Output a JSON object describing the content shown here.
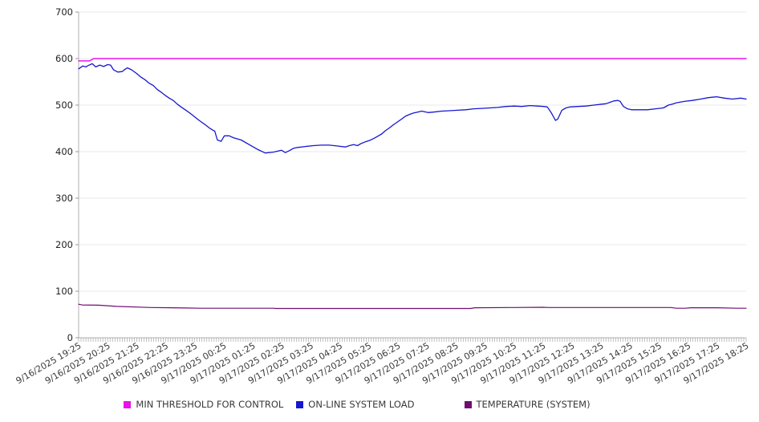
{
  "chart_data": {
    "type": "line",
    "title": "",
    "xlabel": "",
    "ylabel": "",
    "grid": true,
    "legend_position": "bottom",
    "y_axis": {
      "ticks": [
        0,
        100,
        200,
        300,
        400,
        500,
        600,
        700
      ],
      "range": [
        0,
        700
      ]
    },
    "x_axis": {
      "range_hours": [
        0,
        23
      ],
      "minor_tick_count": 277,
      "tick_labels": [
        "9/16/2025 19:25",
        "9/16/2025 20:25",
        "9/16/2025 21:25",
        "9/16/2025 22:25",
        "9/16/2025 23:25",
        "9/17/2025 00:25",
        "9/17/2025 01:25",
        "9/17/2025 02:25",
        "9/17/2025 03:25",
        "9/17/2025 04:25",
        "9/17/2025 05:25",
        "9/17/2025 06:25",
        "9/17/2025 07:25",
        "9/17/2025 08:25",
        "9/17/2025 09:25",
        "9/17/2025 10:25",
        "9/17/2025 11:25",
        "9/17/2025 12:25",
        "9/17/2025 13:25",
        "9/17/2025 14:25",
        "9/17/2025 15:25",
        "9/17/2025 16:25",
        "9/17/2025 17:25",
        "9/17/2025 18:25"
      ]
    },
    "series": [
      {
        "name": "MIN THRESHOLD FOR CONTROL",
        "color": "#e813e8",
        "stroke_width": 1.5,
        "points": [
          [
            0,
            595
          ],
          [
            0.38,
            595
          ],
          [
            0.52,
            600
          ],
          [
            23,
            600
          ]
        ]
      },
      {
        "name": "ON-LINE SYSTEM LOAD",
        "color": "#1717cf",
        "stroke_width": 1.3,
        "points": [
          [
            0,
            578
          ],
          [
            0.14,
            584
          ],
          [
            0.25,
            582
          ],
          [
            0.33,
            585
          ],
          [
            0.47,
            589
          ],
          [
            0.59,
            582
          ],
          [
            0.73,
            586
          ],
          [
            0.86,
            583
          ],
          [
            1,
            587
          ],
          [
            1.1,
            586
          ],
          [
            1.2,
            576
          ],
          [
            1.35,
            571
          ],
          [
            1.5,
            572
          ],
          [
            1.6,
            577
          ],
          [
            1.68,
            580
          ],
          [
            1.82,
            576
          ],
          [
            2,
            568
          ],
          [
            2.15,
            560
          ],
          [
            2.3,
            554
          ],
          [
            2.43,
            547
          ],
          [
            2.57,
            542
          ],
          [
            2.7,
            534
          ],
          [
            2.84,
            528
          ],
          [
            2.98,
            521
          ],
          [
            3.12,
            515
          ],
          [
            3.26,
            510
          ],
          [
            3.4,
            502
          ],
          [
            3.53,
            496
          ],
          [
            3.67,
            490
          ],
          [
            3.81,
            484
          ],
          [
            3.95,
            477
          ],
          [
            4.09,
            470
          ],
          [
            4.22,
            464
          ],
          [
            4.36,
            458
          ],
          [
            4.5,
            451
          ],
          [
            4.63,
            446
          ],
          [
            4.69,
            444
          ],
          [
            4.78,
            425
          ],
          [
            4.91,
            422
          ],
          [
            5.02,
            434
          ],
          [
            5.19,
            434
          ],
          [
            5.33,
            430
          ],
          [
            5.6,
            425
          ],
          [
            5.88,
            415
          ],
          [
            6.16,
            405
          ],
          [
            6.43,
            397
          ],
          [
            6.71,
            399
          ],
          [
            6.99,
            403
          ],
          [
            7.12,
            398
          ],
          [
            7.26,
            402
          ],
          [
            7.4,
            407
          ],
          [
            7.54,
            409
          ],
          [
            7.81,
            411
          ],
          [
            8.09,
            413
          ],
          [
            8.37,
            414
          ],
          [
            8.64,
            414
          ],
          [
            8.92,
            412
          ],
          [
            9.19,
            410
          ],
          [
            9.33,
            413
          ],
          [
            9.47,
            415
          ],
          [
            9.61,
            413
          ],
          [
            9.75,
            418
          ],
          [
            9.88,
            421
          ],
          [
            10.02,
            424
          ],
          [
            10.16,
            428
          ],
          [
            10.3,
            433
          ],
          [
            10.44,
            438
          ],
          [
            10.57,
            445
          ],
          [
            10.71,
            451
          ],
          [
            10.85,
            458
          ],
          [
            10.99,
            464
          ],
          [
            11.13,
            470
          ],
          [
            11.26,
            476
          ],
          [
            11.4,
            480
          ],
          [
            11.54,
            483
          ],
          [
            11.68,
            485
          ],
          [
            11.82,
            487
          ],
          [
            12.04,
            484
          ],
          [
            12.23,
            485
          ],
          [
            12.51,
            487
          ],
          [
            12.78,
            488
          ],
          [
            13.06,
            489
          ],
          [
            13.34,
            490
          ],
          [
            13.61,
            492
          ],
          [
            13.89,
            493
          ],
          [
            14.17,
            494
          ],
          [
            14.44,
            495
          ],
          [
            14.72,
            497
          ],
          [
            15,
            498
          ],
          [
            15.27,
            497
          ],
          [
            15.55,
            499
          ],
          [
            15.82,
            498
          ],
          [
            16.02,
            497
          ],
          [
            16.15,
            496
          ],
          [
            16.29,
            483
          ],
          [
            16.43,
            467
          ],
          [
            16.51,
            470
          ],
          [
            16.65,
            489
          ],
          [
            16.79,
            494
          ],
          [
            16.93,
            496
          ],
          [
            17.2,
            497
          ],
          [
            17.48,
            498
          ],
          [
            17.75,
            500
          ],
          [
            18.03,
            502
          ],
          [
            18.17,
            503
          ],
          [
            18.31,
            506
          ],
          [
            18.44,
            509
          ],
          [
            18.58,
            510
          ],
          [
            18.66,
            508
          ],
          [
            18.77,
            497
          ],
          [
            18.91,
            492
          ],
          [
            19.05,
            490
          ],
          [
            19.33,
            490
          ],
          [
            19.6,
            490
          ],
          [
            19.88,
            492
          ],
          [
            20.15,
            494
          ],
          [
            20.32,
            500
          ],
          [
            20.46,
            502
          ],
          [
            20.6,
            505
          ],
          [
            20.87,
            508
          ],
          [
            21.15,
            510
          ],
          [
            21.43,
            513
          ],
          [
            21.7,
            516
          ],
          [
            21.98,
            518
          ],
          [
            22.25,
            515
          ],
          [
            22.53,
            513
          ],
          [
            22.81,
            515
          ],
          [
            23,
            513
          ]
        ]
      },
      {
        "name": "TEMPERATURE (SYSTEM)",
        "color": "#700d72",
        "stroke_width": 1.2,
        "points": [
          [
            0,
            72
          ],
          [
            0.12,
            70.5
          ],
          [
            0.7,
            70
          ],
          [
            1.3,
            67.5
          ],
          [
            2.5,
            65
          ],
          [
            3.2,
            64.5
          ],
          [
            3.7,
            64
          ],
          [
            4.2,
            63.5
          ],
          [
            5,
            63.5
          ],
          [
            6.7,
            63.5
          ],
          [
            6.8,
            63
          ],
          [
            9,
            63
          ],
          [
            11,
            63
          ],
          [
            13.5,
            63
          ],
          [
            13.65,
            64.5
          ],
          [
            15,
            65
          ],
          [
            16,
            65.5
          ],
          [
            16.2,
            65
          ],
          [
            18,
            65
          ],
          [
            20.4,
            65
          ],
          [
            20.6,
            63.5
          ],
          [
            20.9,
            63.5
          ],
          [
            21.1,
            64.5
          ],
          [
            22,
            64.5
          ],
          [
            22.7,
            63.5
          ],
          [
            23,
            63.5
          ]
        ]
      }
    ],
    "style": {
      "grid_color": "#e8e8e8",
      "axis_color": "#b0b0b0",
      "tick_color": "#999999",
      "label_color": "#3a3a3a"
    }
  }
}
